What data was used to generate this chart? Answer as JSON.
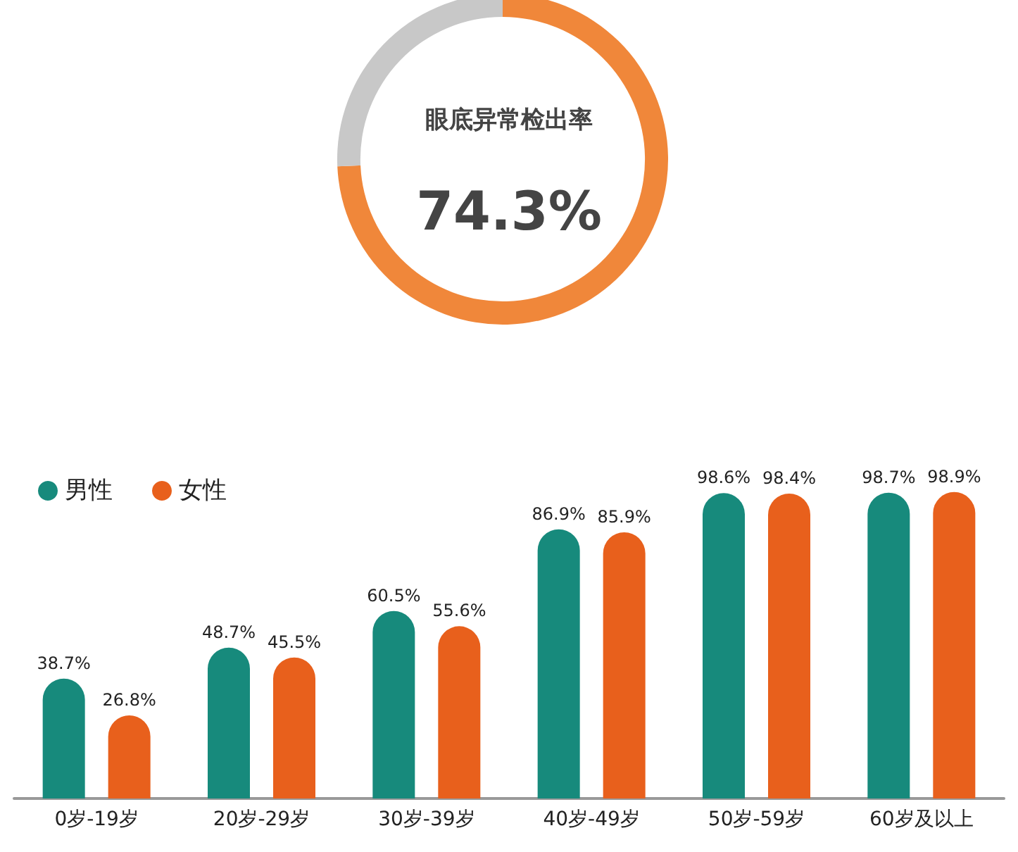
{
  "chart_data": [
    {
      "type": "donut",
      "title": "眼底异常检出率",
      "categories": [
        null,
        null
      ],
      "values": [
        74.3,
        25.7
      ],
      "colors": [
        "#f0873a",
        "#c8c8c8"
      ],
      "value_labels": [
        "74.3%",
        null
      ],
      "legend": false
    },
    {
      "type": "bar",
      "categories": [
        "0岁-19岁",
        "20岁-29岁",
        "30岁-39岁",
        "40岁-49岁",
        "50岁-59岁",
        "60岁及以上"
      ],
      "series": [
        {
          "name": "男性",
          "color": "#178a7c",
          "values": [
            38.7,
            48.7,
            60.5,
            86.9,
            98.6,
            98.7
          ],
          "value_labels": [
            "38.7%",
            "48.7%",
            "60.5%",
            "86.9%",
            "98.6%",
            "98.7%"
          ]
        },
        {
          "name": "女性",
          "color": "#e8601c",
          "values": [
            26.8,
            45.5,
            55.6,
            85.9,
            98.4,
            98.9
          ],
          "value_labels": [
            "26.8%",
            "45.5%",
            "55.6%",
            "85.9%",
            "98.4%",
            "98.9%"
          ]
        }
      ],
      "legend": "top left"
    }
  ]
}
